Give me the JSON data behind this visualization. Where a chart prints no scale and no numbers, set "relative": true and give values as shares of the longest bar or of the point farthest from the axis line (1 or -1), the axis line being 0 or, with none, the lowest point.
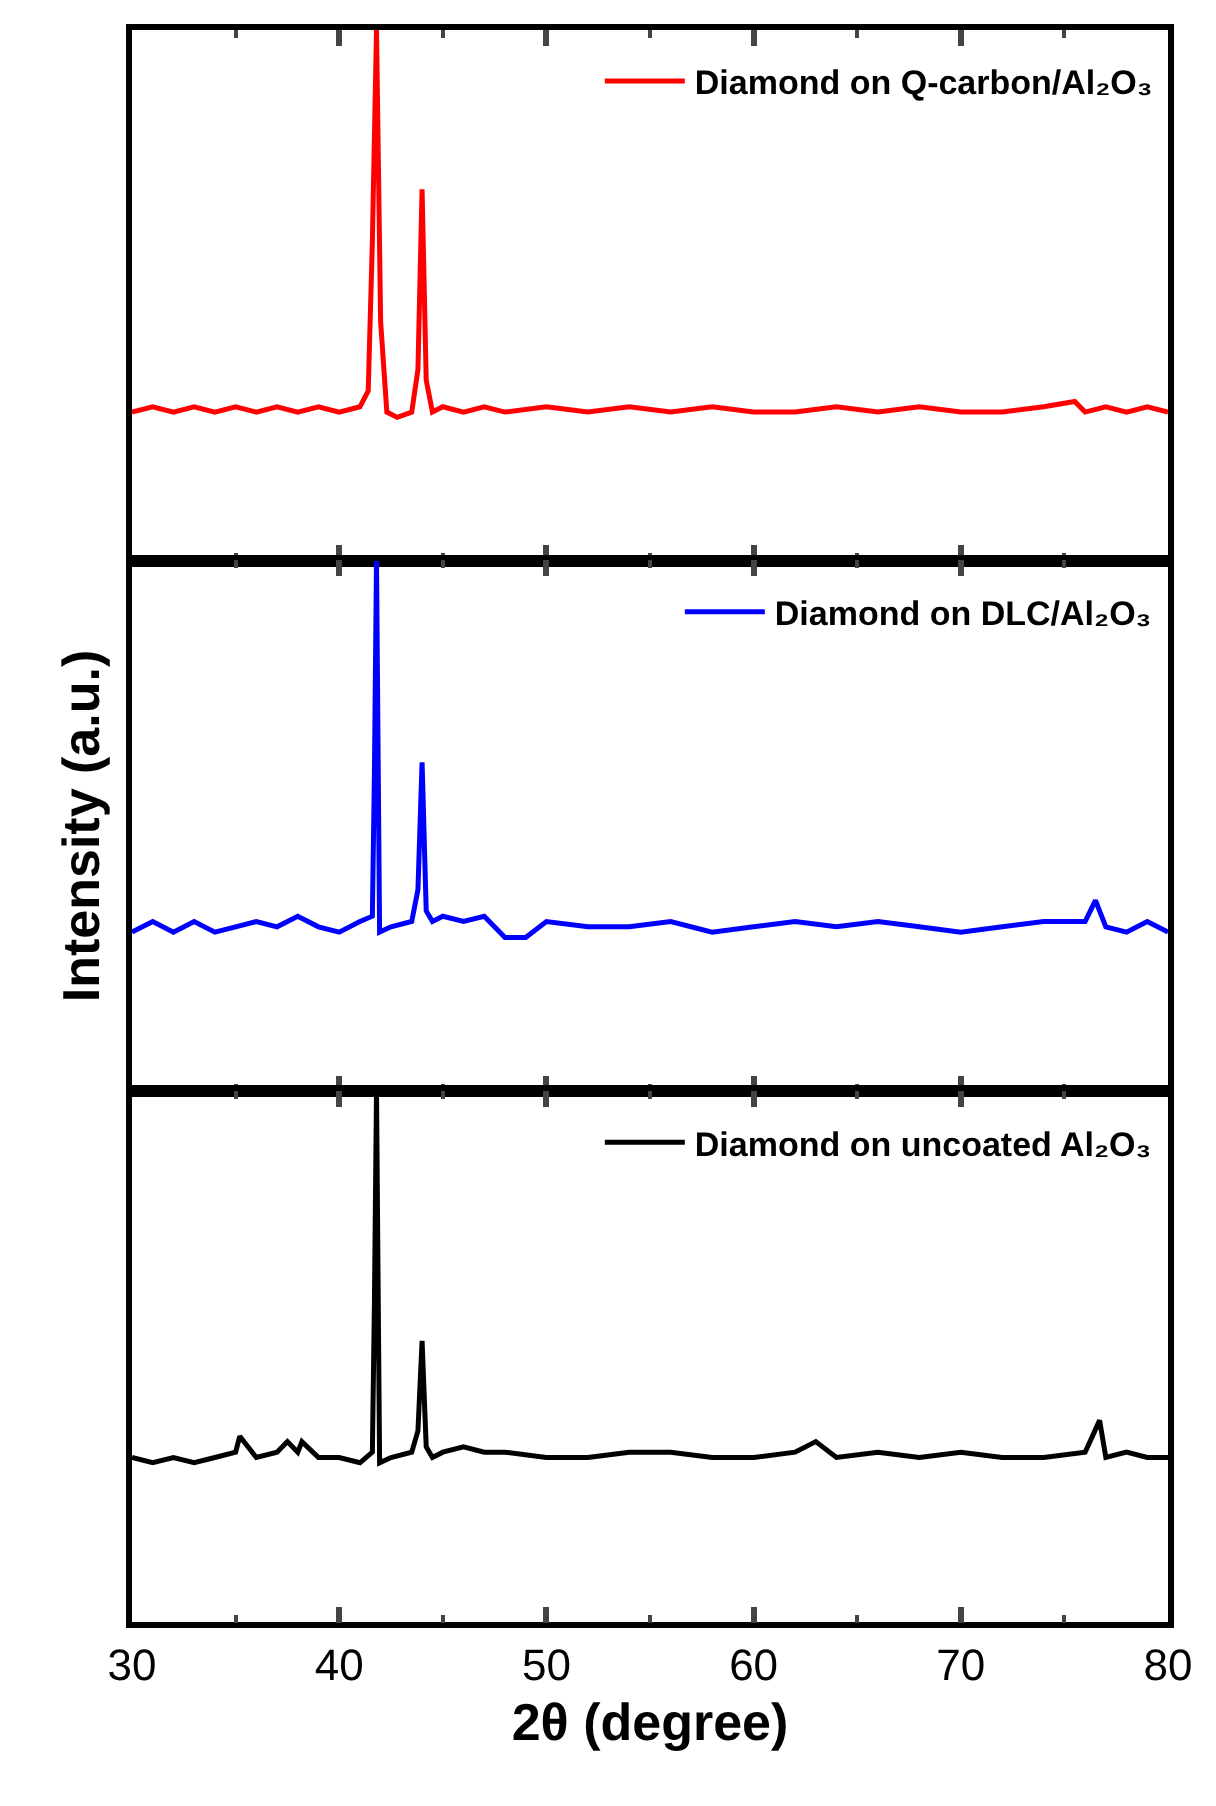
{
  "chart_data": [
    {
      "type": "line",
      "relative": true,
      "xlim": [
        30,
        80
      ],
      "xticks": [
        30,
        40,
        50,
        60,
        70,
        80
      ],
      "tick_labels": false,
      "legend": "top right",
      "series": [
        {
          "name": "Diamond on Q-carbon/Al₂O₃",
          "color": "#ff0000",
          "x": [
            30,
            31,
            32,
            33,
            34,
            35,
            36,
            37,
            38,
            39,
            40,
            41,
            41.4,
            41.6,
            41.8,
            42.0,
            42.3,
            42.8,
            43.5,
            43.8,
            44.0,
            44.2,
            44.5,
            45,
            46,
            47,
            48,
            50,
            52,
            54,
            56,
            58,
            60,
            62,
            64,
            66,
            68,
            70,
            72,
            74,
            75.5,
            76,
            77,
            78,
            79,
            80
          ],
          "values": [
            0.28,
            0.29,
            0.28,
            0.29,
            0.28,
            0.29,
            0.28,
            0.29,
            0.28,
            0.29,
            0.28,
            0.29,
            0.32,
            0.6,
            1.0,
            0.45,
            0.28,
            0.27,
            0.28,
            0.36,
            0.7,
            0.34,
            0.28,
            0.29,
            0.28,
            0.29,
            0.28,
            0.29,
            0.28,
            0.29,
            0.28,
            0.29,
            0.28,
            0.28,
            0.29,
            0.28,
            0.29,
            0.28,
            0.28,
            0.29,
            0.3,
            0.28,
            0.29,
            0.28,
            0.29,
            0.28
          ]
        }
      ]
    },
    {
      "type": "line",
      "relative": true,
      "xlim": [
        30,
        80
      ],
      "xticks": [
        30,
        40,
        50,
        60,
        70,
        80
      ],
      "tick_labels": false,
      "legend": "top right",
      "ylabel": "Intensity (a.u.)",
      "series": [
        {
          "name": "Diamond on DLC/Al₂O₃",
          "color": "#0000ff",
          "x": [
            30,
            31,
            32,
            33,
            34,
            35,
            36,
            37,
            38,
            39,
            40,
            41,
            41.6,
            41.7,
            41.8,
            41.95,
            42.5,
            43.5,
            43.8,
            44.0,
            44.2,
            44.5,
            45,
            46,
            47,
            48,
            49,
            50,
            52,
            54,
            56,
            58,
            60,
            62,
            64,
            66,
            68,
            70,
            72,
            74,
            76,
            76.5,
            77,
            78,
            79,
            80
          ],
          "values": [
            0.3,
            0.32,
            0.3,
            0.32,
            0.3,
            0.31,
            0.32,
            0.31,
            0.33,
            0.31,
            0.3,
            0.32,
            0.33,
            0.6,
            1.0,
            0.3,
            0.31,
            0.32,
            0.38,
            0.62,
            0.34,
            0.32,
            0.33,
            0.32,
            0.33,
            0.29,
            0.29,
            0.32,
            0.31,
            0.31,
            0.32,
            0.3,
            0.31,
            0.32,
            0.31,
            0.32,
            0.31,
            0.3,
            0.31,
            0.32,
            0.32,
            0.36,
            0.31,
            0.3,
            0.32,
            0.3
          ]
        }
      ]
    },
    {
      "type": "line",
      "relative": true,
      "xlim": [
        30,
        80
      ],
      "xticks": [
        30,
        40,
        50,
        60,
        70,
        80
      ],
      "tick_labels": "x",
      "legend": "top right",
      "xlabel": "2θ (degree)",
      "series": [
        {
          "name": "Diamond on uncoated Al₂O₃",
          "color": "#000000",
          "x": [
            30,
            31,
            32,
            33,
            34,
            35,
            35.2,
            36,
            37,
            37.5,
            38,
            38.2,
            39,
            40,
            41,
            41.6,
            41.7,
            41.8,
            41.95,
            42.5,
            43.5,
            43.8,
            44.0,
            44.2,
            44.5,
            45,
            46,
            47,
            48,
            50,
            52,
            54,
            56,
            58,
            60,
            62,
            63,
            64,
            66,
            68,
            70,
            72,
            74,
            76,
            76.7,
            77,
            78,
            79,
            80
          ],
          "values": [
            0.31,
            0.3,
            0.31,
            0.3,
            0.31,
            0.32,
            0.35,
            0.31,
            0.32,
            0.34,
            0.32,
            0.34,
            0.31,
            0.31,
            0.3,
            0.32,
            0.6,
            1.0,
            0.3,
            0.31,
            0.32,
            0.36,
            0.53,
            0.33,
            0.31,
            0.32,
            0.33,
            0.32,
            0.32,
            0.31,
            0.31,
            0.32,
            0.32,
            0.31,
            0.31,
            0.32,
            0.34,
            0.31,
            0.32,
            0.31,
            0.32,
            0.31,
            0.31,
            0.32,
            0.38,
            0.31,
            0.32,
            0.31,
            0.31
          ]
        }
      ]
    }
  ]
}
